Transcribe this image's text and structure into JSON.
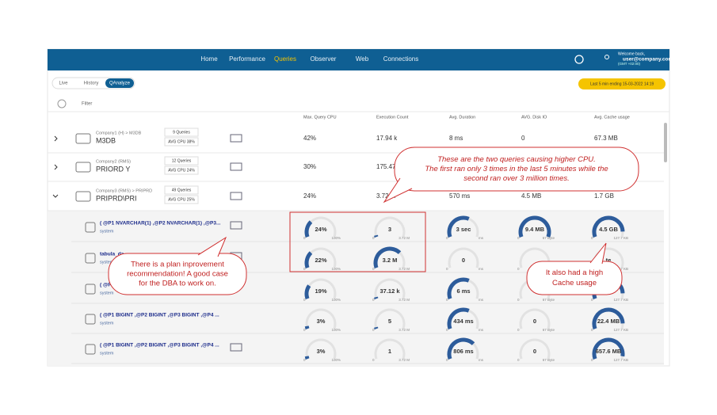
{
  "nav": {
    "links": [
      "Home",
      "Performance",
      "Queries",
      "Observer",
      "Web",
      "Connections"
    ],
    "welcome": "Welcome back,",
    "user": "user@company.com",
    "tz": "(GMT +02:00)"
  },
  "tabs": [
    "Live",
    "History",
    "QAnalyze"
  ],
  "time_range": "Last 5 min ending 15-03-2022 14:19",
  "filter": "Filter",
  "columns": [
    "Max. Query CPU",
    "Execution Count",
    "Avg. Duration",
    "AVG. Disk IO",
    "Avg. Cache usage"
  ],
  "groups": [
    {
      "path": "Company1 (H) > M3DB",
      "name": "M3DB",
      "queries": "9 Queries",
      "avg_cpu": "AVG CPU 38%",
      "cells": [
        "42%",
        "17.94 k",
        "8 ms",
        "0",
        "67.3 MB"
      ]
    },
    {
      "path": "Company2 (RMS)",
      "name": "PRIORD Y",
      "queries": "12 Queries",
      "avg_cpu": "AVG CPU 24%",
      "cells": [
        "30%",
        "175.47",
        null,
        null,
        null
      ]
    },
    {
      "path": "Company3 (RMS) > PRIPRD",
      "name": "PRIPRD\\PRI",
      "queries": "49 Queries",
      "avg_cpu": "AVG CPU 25%",
      "cells": [
        "24%",
        "3.72 M",
        "570 ms",
        "4.5 MB",
        "1.7 GB"
      ]
    }
  ],
  "gauge_ranges": [
    [
      "0",
      "100%"
    ],
    [
      "0",
      "3.72 M"
    ],
    [
      "0",
      "ms"
    ],
    [
      "0",
      "67 Byte"
    ],
    [
      "0",
      "127.7 KB"
    ]
  ],
  "queries": [
    {
      "text": "( @P1 NVARCHAR(1) ,@P2 NVARCHAR(1) ,@P3...",
      "user": "system",
      "cells": [
        "24%",
        "3",
        "3 sec",
        "9.4 MB",
        "4.5 GB"
      ]
    },
    {
      "text": "tabula_da",
      "user": "system",
      "cells": [
        "22%",
        "3.2 M",
        "0",
        null,
        "te"
      ]
    },
    {
      "text": "( @P",
      "user": "system",
      "cells": [
        "19%",
        "37.12 k",
        "6 ms",
        null,
        "MB"
      ]
    },
    {
      "text": "( @P1 BIGINT ,@P2 BIGINT ,@P3 BIGINT ,@P4 ...",
      "user": "system",
      "cells": [
        "3%",
        "5",
        "434 ms",
        "0",
        "22.4 MB"
      ]
    },
    {
      "text": "( @P1 BIGINT ,@P2 BIGINT ,@P3 BIGINT ,@P4 ...",
      "user": "system",
      "cells": [
        "3%",
        "1",
        "806 ms",
        "0",
        "657.6 MB"
      ]
    }
  ],
  "callouts": {
    "cpu": [
      "These are the two queries causing higher CPU.",
      "The first ran only 3 times in the last 5 minutes while the",
      "second ran over 3 million times."
    ],
    "plan": [
      "There is a plan inprovement",
      "recommendation! A good case",
      "for the DBA to work on."
    ],
    "cache": [
      "It also had a high",
      "Cache usage"
    ]
  }
}
